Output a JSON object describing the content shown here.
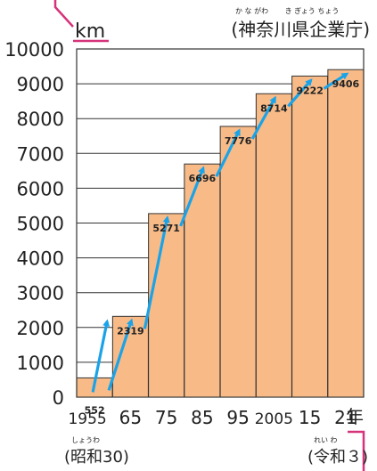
{
  "chart_data": {
    "type": "bar",
    "unit_label": "km",
    "source": "(神奈川県企業庁)",
    "source_ruby": "か な がわ　　 き ぎょう ちょう",
    "categories": [
      "1955",
      "65",
      "75",
      "85",
      "95",
      "2005",
      "15",
      "21"
    ],
    "values": [
      552,
      2319,
      5271,
      6696,
      7776,
      8714,
      9222,
      9406
    ],
    "value_labels": [
      "552",
      "2319",
      "5271",
      "6696",
      "7776",
      "8714",
      "9222",
      "9406"
    ],
    "year_suffix": "年",
    "era_start": "(昭和30)",
    "era_start_ruby": "しょうわ",
    "era_end": "(令和３)",
    "era_end_ruby": "れい わ",
    "ylim": [
      0,
      10000
    ],
    "yticks": [
      0,
      1000,
      2000,
      3000,
      4000,
      5000,
      6000,
      7000,
      8000,
      9000,
      10000
    ],
    "grid": true,
    "colors": {
      "bar": "#f8bb88",
      "arrow": "#1aa3e8",
      "accent": "#d6337a",
      "label": "#1aa3e8"
    }
  }
}
